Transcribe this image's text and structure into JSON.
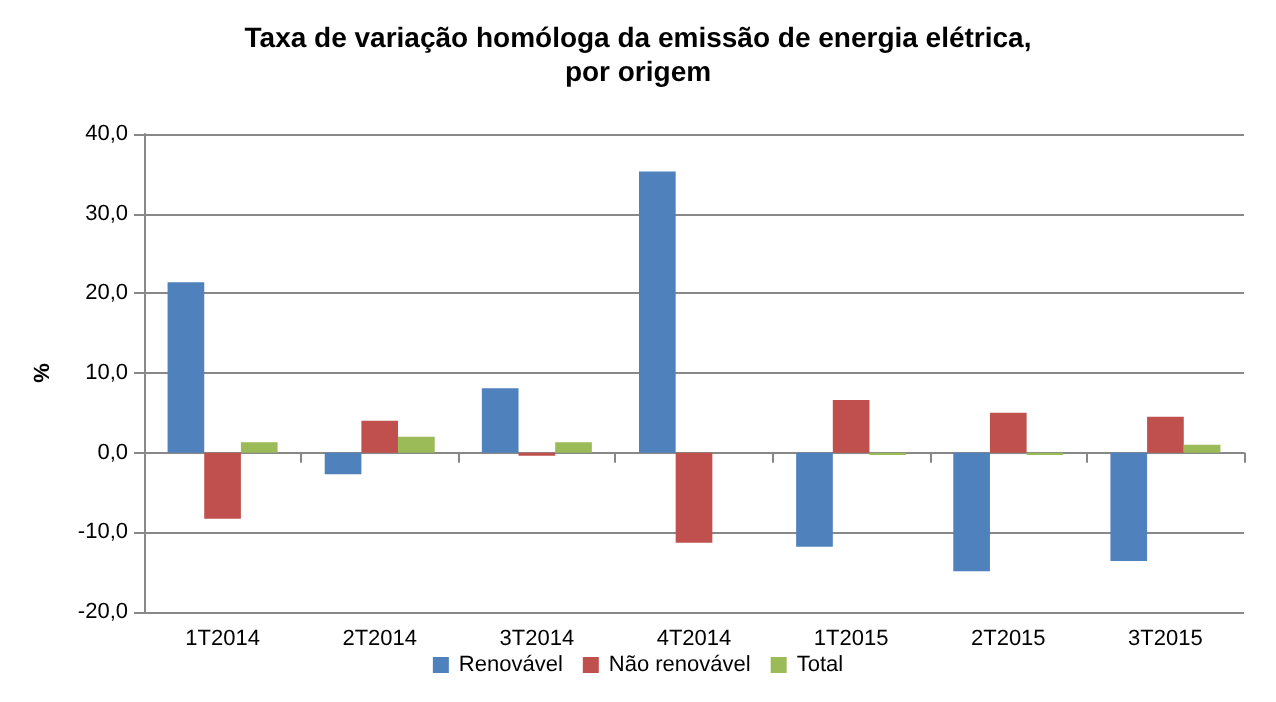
{
  "chart_data": {
    "type": "bar",
    "title": "Taxa de variação homóloga da emissão de energia elétrica,\npor origem",
    "ylabel": "%",
    "categories": [
      "1T2014",
      "2T2014",
      "3T2014",
      "4T2014",
      "1T2015",
      "2T2015",
      "3T2015"
    ],
    "series": [
      {
        "name": "Renovável",
        "color": "#4f81bd",
        "values": [
          21.4,
          -2.7,
          8.1,
          35.3,
          -11.8,
          -14.9,
          -13.6
        ]
      },
      {
        "name": "Não renovável",
        "color": "#c0504d",
        "values": [
          -8.3,
          4.0,
          -0.4,
          -11.3,
          6.6,
          5.0,
          4.5
        ]
      },
      {
        "name": "Total",
        "color": "#9bbb59",
        "values": [
          1.3,
          2.0,
          1.3,
          0.0,
          -0.3,
          -0.3,
          1.0
        ]
      }
    ],
    "ylim": [
      -20,
      40
    ],
    "yticks": [
      {
        "value": -20,
        "label": "-20,0"
      },
      {
        "value": -10,
        "label": "-10,0"
      },
      {
        "value": 0,
        "label": "0,0"
      },
      {
        "value": 10,
        "label": "10,0"
      },
      {
        "value": 20,
        "label": "20,0"
      },
      {
        "value": 30,
        "label": "30,0"
      },
      {
        "value": 40,
        "label": "40,0"
      }
    ],
    "grid": "y",
    "legend": "bottom"
  }
}
